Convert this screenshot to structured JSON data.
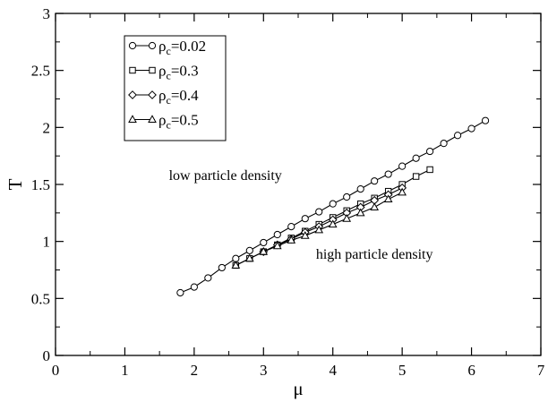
{
  "chart_data": {
    "type": "line",
    "xlabel": "μ",
    "ylabel": "T",
    "xlim": [
      0,
      7
    ],
    "ylim": [
      0,
      3
    ],
    "xticks": [
      "0",
      "1",
      "2",
      "3",
      "4",
      "5",
      "6",
      "7"
    ],
    "yticks": [
      "0",
      "0.5",
      "1",
      "1.5",
      "2",
      "2.5",
      "3"
    ],
    "grid": false,
    "legend_position": "top-left",
    "annotations": [
      {
        "text": "low particle density",
        "x": 2.45,
        "y": 1.54
      },
      {
        "text": "high particle density",
        "x": 4.6,
        "y": 0.85
      }
    ],
    "series": [
      {
        "name_base": "ρ",
        "name_sub": "c",
        "name_rest": "=0.02",
        "marker": "circle",
        "x": [
          1.8,
          2.0,
          2.2,
          2.4,
          2.6,
          2.8,
          3.0,
          3.2,
          3.4,
          3.6,
          3.8,
          4.0,
          4.2,
          4.4,
          4.6,
          4.8,
          5.0,
          5.2,
          5.4,
          5.6,
          5.8,
          6.0,
          6.2
        ],
        "y": [
          0.55,
          0.6,
          0.68,
          0.77,
          0.85,
          0.92,
          0.99,
          1.06,
          1.13,
          1.2,
          1.26,
          1.33,
          1.39,
          1.46,
          1.53,
          1.59,
          1.66,
          1.73,
          1.79,
          1.86,
          1.93,
          1.99,
          2.06
        ]
      },
      {
        "name_base": "ρ",
        "name_sub": "c",
        "name_rest": "=0.3",
        "marker": "square",
        "x": [
          2.6,
          2.8,
          3.0,
          3.2,
          3.4,
          3.6,
          3.8,
          4.0,
          4.2,
          4.4,
          4.6,
          4.8,
          5.0,
          5.2,
          5.4
        ],
        "y": [
          0.79,
          0.85,
          0.91,
          0.97,
          1.03,
          1.09,
          1.15,
          1.21,
          1.27,
          1.33,
          1.38,
          1.44,
          1.5,
          1.57,
          1.63
        ]
      },
      {
        "name_base": "ρ",
        "name_sub": "c",
        "name_rest": "=0.4",
        "marker": "diamond",
        "x": [
          3.0,
          3.2,
          3.4,
          3.6,
          3.8,
          4.0,
          4.2,
          4.4,
          4.6,
          4.8,
          5.0
        ],
        "y": [
          0.91,
          0.97,
          1.02,
          1.08,
          1.13,
          1.19,
          1.25,
          1.3,
          1.36,
          1.41,
          1.47
        ]
      },
      {
        "name_base": "ρ",
        "name_sub": "c",
        "name_rest": "=0.5",
        "marker": "triangle",
        "x": [
          2.6,
          2.8,
          3.0,
          3.2,
          3.4,
          3.6,
          3.8,
          4.0,
          4.2,
          4.4,
          4.6,
          4.8,
          5.0
        ],
        "y": [
          0.79,
          0.85,
          0.91,
          0.96,
          1.01,
          1.05,
          1.1,
          1.15,
          1.2,
          1.25,
          1.3,
          1.37,
          1.43
        ]
      }
    ]
  }
}
